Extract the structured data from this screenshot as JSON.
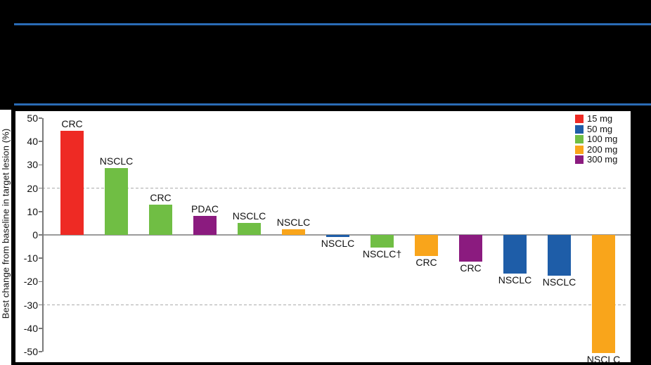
{
  "window": {
    "background_color": "#000000",
    "divider_color": "#2A6BB5",
    "panel_color": "#FFFFFF"
  },
  "chart_data": {
    "type": "bar",
    "subtype": "waterfall",
    "title": "",
    "xlabel": "",
    "ylabel": "Best change from baseline in target lesion (%)",
    "ylim": [
      -50,
      50
    ],
    "yticks": [
      50,
      40,
      30,
      20,
      10,
      0,
      -10,
      -20,
      -30,
      -40,
      -50
    ],
    "grid": "off",
    "reference_lines_dashed": [
      20,
      -30
    ],
    "legend": {
      "position": "top-right",
      "entries": [
        {
          "label": "15 mg",
          "color": "#EE2A24"
        },
        {
          "label": "50 mg",
          "color": "#1E5DA8"
        },
        {
          "label": "100 mg",
          "color": "#70BE44"
        },
        {
          "label": "200 mg",
          "color": "#F9A51B"
        },
        {
          "label": "300 mg",
          "color": "#8B1B7F"
        }
      ]
    },
    "bars": [
      {
        "label": "CRC",
        "dose": "15 mg",
        "value": 44.5
      },
      {
        "label": "NSCLC",
        "dose": "100 mg",
        "value": 28.5
      },
      {
        "label": "CRC",
        "dose": "100 mg",
        "value": 13
      },
      {
        "label": "PDAC",
        "dose": "300 mg",
        "value": 8
      },
      {
        "label": "NSCLC",
        "dose": "100 mg",
        "value": 5
      },
      {
        "label": "NSCLC",
        "dose": "200 mg",
        "value": 2.3
      },
      {
        "label": "NSCLC",
        "dose": "50 mg",
        "value": -1
      },
      {
        "label": "NSCLC†",
        "dose": "100 mg",
        "value": -5.5
      },
      {
        "label": "CRC",
        "dose": "200 mg",
        "value": -9
      },
      {
        "label": "CRC",
        "dose": "300 mg",
        "value": -11.5
      },
      {
        "label": "NSCLC",
        "dose": "50 mg",
        "value": -16.5
      },
      {
        "label": "NSCLC",
        "dose": "50 mg",
        "value": -17.5
      },
      {
        "label": "NSCLC",
        "dose": "200 mg",
        "value": -50.5
      }
    ],
    "axis_colors": {
      "axis_line": "#7A7A7A",
      "zero_line": "#9B9B9B",
      "dashed_line": "#ABABAB",
      "text": "#111111"
    }
  }
}
